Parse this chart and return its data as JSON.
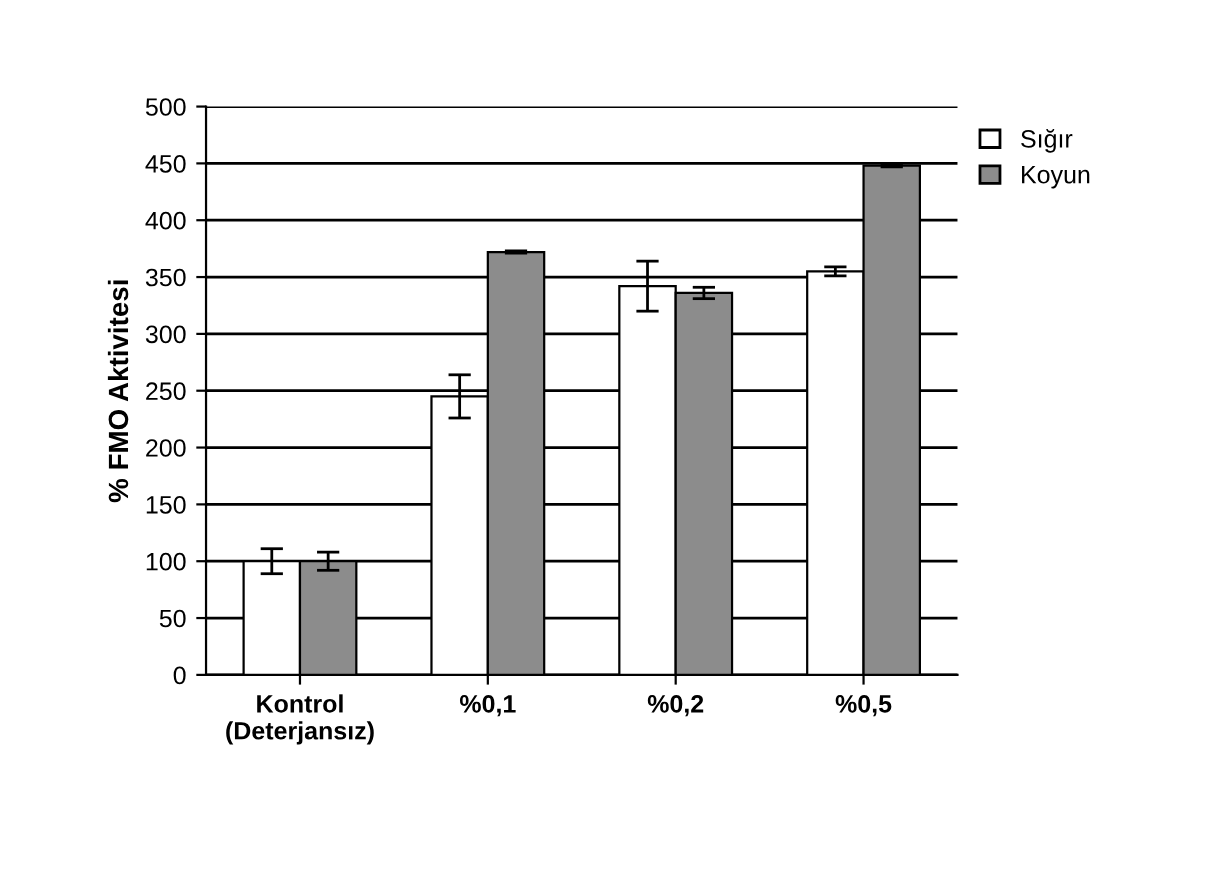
{
  "chart_data": {
    "type": "bar",
    "ylabel": "% FMO Aktivitesi",
    "categories": [
      "Kontrol\n(Deterjansız)",
      "%0,1",
      "%0,2",
      "%0,5"
    ],
    "series": [
      {
        "name": "Sığır",
        "color": "#ffffff",
        "values": [
          100,
          245,
          342,
          355
        ],
        "errors": [
          11,
          19,
          22,
          4
        ]
      },
      {
        "name": "Koyun",
        "color": "#8c8c8c",
        "values": [
          100,
          372,
          336,
          448
        ],
        "errors": [
          8,
          1,
          5,
          1
        ]
      }
    ],
    "ylim": [
      0,
      500
    ],
    "yticks": [
      0,
      50,
      100,
      150,
      200,
      250,
      300,
      350,
      400,
      450,
      500
    ],
    "grid": "y",
    "legend": "top right"
  }
}
